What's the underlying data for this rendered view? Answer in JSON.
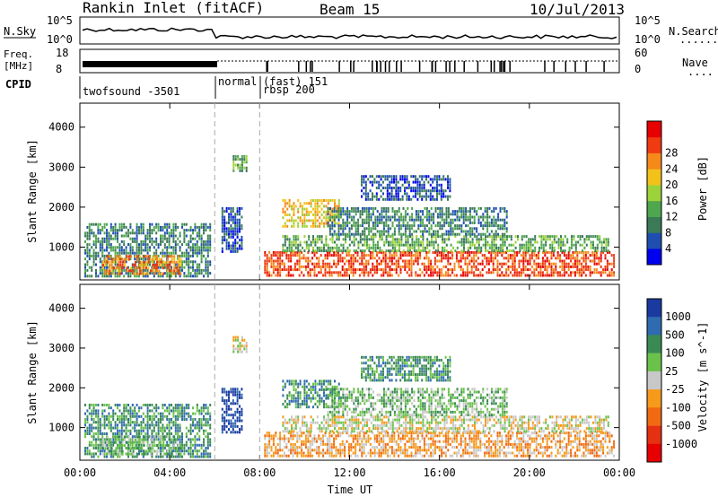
{
  "header": {
    "station": "Rankin Inlet (fitACF)",
    "beam": "Beam 15",
    "date": "10/Jul/2013"
  },
  "top_panels": {
    "nsky_label": "N.Sky",
    "nsearch_label": "N.Search",
    "nsky_ticks": [
      "10^5",
      "10^0"
    ],
    "nsearch_ticks": [
      "10^5",
      "10^0"
    ],
    "freq_label_1": "Freq.",
    "freq_label_2": "[MHz]",
    "freq_ticks": [
      "18",
      "8"
    ],
    "nave_label": "Nave",
    "nave_ticks": [
      "60",
      "0"
    ],
    "dotted_marker": "........",
    "nave_dots": "...."
  },
  "cpid": {
    "label": "CPID",
    "modes": [
      {
        "text": "twofsound -3501",
        "row": 2
      },
      {
        "text": "normal",
        "row": 0
      },
      {
        "text": "(fast) 151",
        "row": 0
      },
      {
        "text": "rbsp 200",
        "row": 1
      }
    ]
  },
  "chart_data": [
    {
      "type": "heatmap",
      "name": "power",
      "ylabel": "Slant Range [km]",
      "xlabel": "Time UT",
      "x_ticks": [
        "00:00",
        "04:00",
        "08:00",
        "12:00",
        "16:00",
        "20:00",
        "00:00"
      ],
      "x_range_hours": [
        0,
        24
      ],
      "y_ticks": [
        1000,
        2000,
        3000,
        4000
      ],
      "y_range_km": [
        180,
        4600
      ],
      "colorbar": {
        "label": "Power [dB]",
        "ticks": [
          "4",
          "8",
          "12",
          "16",
          "20",
          "24",
          "28"
        ],
        "colors": [
          "#0000ee",
          "#1e4fb0",
          "#3a7a56",
          "#4ea64e",
          "#9cd23a",
          "#f2c21a",
          "#f58a1a",
          "#ef3a12",
          "#e60000"
        ]
      },
      "mode_change_hours": [
        6.0,
        8.0
      ],
      "echo_regions": [
        {
          "t0": 0.2,
          "t1": 5.8,
          "r0": 300,
          "r1": 1600,
          "level": 2
        },
        {
          "t0": 1.0,
          "t1": 4.5,
          "r0": 300,
          "r1": 800,
          "level": 6
        },
        {
          "t0": 6.3,
          "t1": 7.2,
          "r0": 900,
          "r1": 2000,
          "level": 1
        },
        {
          "t0": 6.8,
          "t1": 7.4,
          "r0": 2900,
          "r1": 3300,
          "level": 3
        },
        {
          "t0": 8.2,
          "t1": 23.8,
          "r0": 300,
          "r1": 900,
          "level": 7
        },
        {
          "t0": 9.0,
          "t1": 23.5,
          "r0": 900,
          "r1": 1300,
          "level": 3
        },
        {
          "t0": 9.0,
          "t1": 11.5,
          "r0": 1500,
          "r1": 2200,
          "level": 5
        },
        {
          "t0": 11.0,
          "t1": 19.0,
          "r0": 1300,
          "r1": 2000,
          "level": 2
        },
        {
          "t0": 12.5,
          "t1": 16.5,
          "r0": 2200,
          "r1": 2800,
          "level": 1
        }
      ]
    },
    {
      "type": "heatmap",
      "name": "velocity",
      "ylabel": "Slant Range [km]",
      "xlabel": "Time UT",
      "x_ticks": [
        "00:00",
        "04:00",
        "08:00",
        "12:00",
        "16:00",
        "20:00",
        "00:00"
      ],
      "x_range_hours": [
        0,
        24
      ],
      "y_ticks": [
        1000,
        2000,
        3000,
        4000
      ],
      "y_range_km": [
        180,
        4600
      ],
      "colorbar": {
        "label": "Velocity [m s^-1]",
        "ticks": [
          "1000",
          "500",
          "100",
          "25",
          "-25",
          "-100",
          "-500",
          "-1000"
        ],
        "colors": [
          "#1a3aa0",
          "#2f6bb0",
          "#3a8a55",
          "#6ac24a",
          "#c8c8c8",
          "#f59a1a",
          "#f06a12",
          "#e63012",
          "#e60000"
        ]
      },
      "mode_change_hours": [
        6.0,
        8.0
      ],
      "echo_regions": [
        {
          "t0": 0.2,
          "t1": 5.8,
          "r0": 300,
          "r1": 1600,
          "level": 2
        },
        {
          "t0": 1.0,
          "t1": 4.5,
          "r0": 300,
          "r1": 800,
          "level": 3
        },
        {
          "t0": 6.3,
          "t1": 7.2,
          "r0": 900,
          "r1": 2000,
          "level": 0
        },
        {
          "t0": 6.8,
          "t1": 7.4,
          "r0": 2900,
          "r1": 3300,
          "level": 4
        },
        {
          "t0": 8.2,
          "t1": 23.8,
          "r0": 300,
          "r1": 900,
          "level": 5
        },
        {
          "t0": 9.0,
          "t1": 23.5,
          "r0": 900,
          "r1": 1300,
          "level": 4
        },
        {
          "t0": 9.0,
          "t1": 11.5,
          "r0": 1500,
          "r1": 2200,
          "level": 2
        },
        {
          "t0": 11.0,
          "t1": 19.0,
          "r0": 1300,
          "r1": 2000,
          "level": 3
        },
        {
          "t0": 12.5,
          "t1": 16.5,
          "r0": 2200,
          "r1": 2800,
          "level": 2
        }
      ]
    }
  ]
}
